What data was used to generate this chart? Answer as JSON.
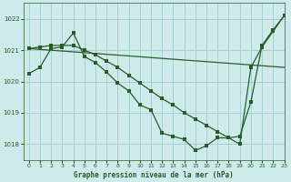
{
  "title": "Graphe pression niveau de la mer (hPa)",
  "xlim": [
    -0.5,
    23
  ],
  "ylim": [
    1017.5,
    1022.5
  ],
  "yticks": [
    1018,
    1019,
    1020,
    1021,
    1022
  ],
  "xticks": [
    0,
    1,
    2,
    3,
    4,
    5,
    6,
    7,
    8,
    9,
    10,
    11,
    12,
    13,
    14,
    15,
    16,
    17,
    18,
    19,
    20,
    21,
    22,
    23
  ],
  "bg_color": "#ceeaea",
  "grid_color": "#a8d0d0",
  "line_color": "#2a5c2a",
  "line1_x": [
    0,
    1,
    2,
    3,
    4,
    5,
    6,
    7,
    8,
    9,
    10,
    11,
    12,
    13,
    14,
    15,
    16,
    17,
    18,
    19,
    20,
    21,
    22,
    23
  ],
  "line1_y": [
    1020.25,
    1020.45,
    1021.05,
    1021.1,
    1021.55,
    1020.8,
    1020.6,
    1020.3,
    1019.95,
    1019.7,
    1019.25,
    1019.1,
    1018.35,
    1018.25,
    1018.15,
    1017.8,
    1017.95,
    1018.2,
    1018.2,
    1018.25,
    1019.35,
    1021.15,
    1021.65,
    1022.1
  ],
  "line2_x": [
    0,
    1,
    2,
    3,
    4,
    5,
    6,
    7,
    8,
    9,
    10,
    11,
    12,
    13,
    14,
    15,
    16,
    17,
    18,
    19,
    20,
    21,
    22,
    23
  ],
  "line2_y": [
    1021.05,
    1021.1,
    1021.15,
    1021.15,
    1021.15,
    1021.0,
    1020.85,
    1020.65,
    1020.45,
    1020.2,
    1019.95,
    1019.7,
    1019.45,
    1019.25,
    1019.0,
    1018.8,
    1018.6,
    1018.4,
    1018.2,
    1018.0,
    1020.45,
    1021.1,
    1021.6,
    1022.1
  ],
  "line3_x": [
    0,
    23
  ],
  "line3_y": [
    1021.05,
    1020.45
  ]
}
